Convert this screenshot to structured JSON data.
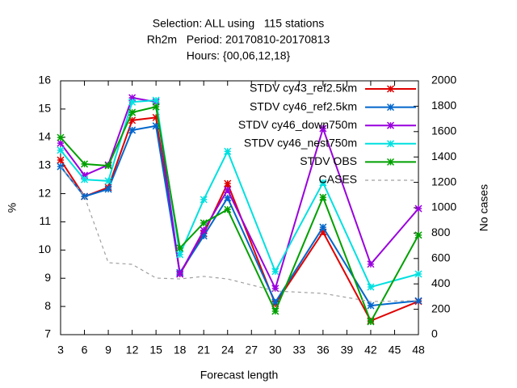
{
  "chart_data": {
    "type": "line",
    "title": [
      "Selection: ALL using   115 stations",
      "Rh2m   Period: 20170810-20170813",
      "Hours: {00,06,12,18}"
    ],
    "xlabel": "Forecast length",
    "ylabel": "%",
    "y2label": "No cases",
    "x": [
      3,
      6,
      9,
      12,
      15,
      18,
      21,
      24,
      30,
      36,
      42,
      48
    ],
    "xlim": [
      3,
      48
    ],
    "xticks": [
      3,
      6,
      9,
      12,
      15,
      18,
      21,
      24,
      27,
      30,
      33,
      36,
      39,
      42,
      45,
      48
    ],
    "ylim": [
      7,
      16
    ],
    "yticks": [
      7,
      8,
      9,
      10,
      11,
      12,
      13,
      14,
      15,
      16
    ],
    "y2lim": [
      0,
      2000
    ],
    "y2ticks": [
      0,
      200,
      400,
      600,
      800,
      1000,
      1200,
      1400,
      1600,
      1800,
      2000
    ],
    "legend": "top-right",
    "series": [
      {
        "name": "STDV cy43_ref2.5km",
        "color": "#e00000",
        "values": [
          13.19,
          11.9,
          12.22,
          14.6,
          14.7,
          9.15,
          10.58,
          12.36,
          8.09,
          10.64,
          7.49,
          8.18
        ]
      },
      {
        "name": "STDV cy46_ref2.5km",
        "color": "#0066cc",
        "values": [
          12.96,
          11.9,
          12.16,
          14.25,
          14.4,
          9.2,
          10.5,
          11.85,
          8.15,
          10.81,
          8.03,
          8.2
        ]
      },
      {
        "name": "STDV cy46_down750m",
        "color": "#9900dd",
        "values": [
          13.79,
          12.65,
          13.02,
          15.4,
          15.25,
          9.15,
          10.7,
          12.13,
          8.64,
          14.31,
          9.5,
          11.47
        ]
      },
      {
        "name": "STDV cy46_nest750m",
        "color": "#00e0e0",
        "values": [
          13.54,
          12.5,
          12.45,
          15.25,
          15.31,
          9.84,
          11.79,
          13.5,
          9.24,
          12.39,
          8.69,
          9.15
        ]
      },
      {
        "name": "STDV OBS",
        "color": "#00a000",
        "values": [
          13.99,
          13.05,
          12.99,
          14.88,
          15.08,
          10.07,
          10.96,
          11.44,
          7.83,
          11.87,
          7.46,
          10.53
        ]
      },
      {
        "name": "CASES",
        "color": "#a0a0a0",
        "axis": "y2",
        "dashed": true,
        "values": [
          1325,
          1089,
          567,
          554,
          446,
          439,
          459,
          439,
          344,
          325,
          261,
          268
        ]
      }
    ]
  }
}
